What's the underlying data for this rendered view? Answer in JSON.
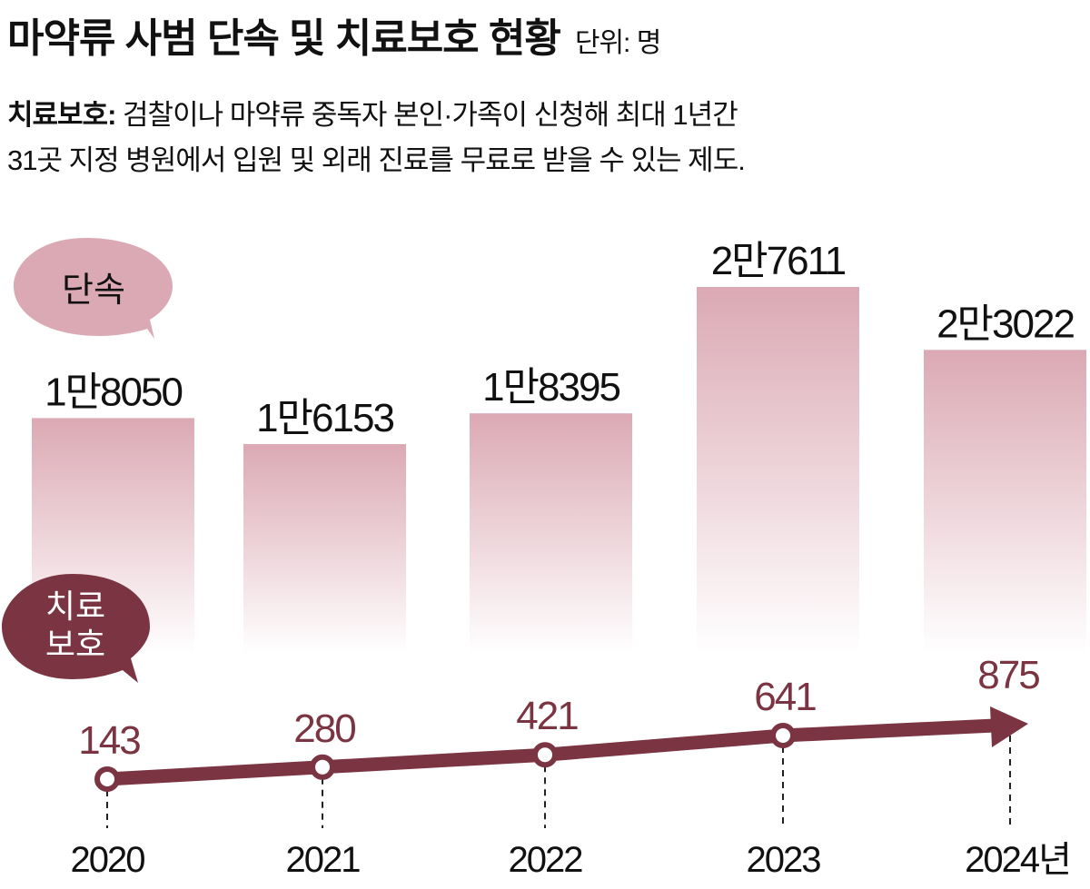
{
  "title": "마약류 사범 단속 및 치료보호 현황",
  "unit": "단위: 명",
  "note": {
    "label": "치료보호:",
    "line1": "검찰이나 마약류 중독자 본인·가족이 신청해 최대 1년간",
    "line2": "31곳 지정 병원에서 입원 및 외래 진료를 무료로 받을 수 있는 제도."
  },
  "chart_data": {
    "type": "bar+line",
    "categories": [
      "2020",
      "2021",
      "2022",
      "2023",
      "2024년"
    ],
    "series": [
      {
        "name": "단속",
        "type": "bar",
        "values": [
          18050,
          16153,
          18395,
          27611,
          23022
        ],
        "labels": [
          "1만8050",
          "1만6153",
          "1만8395",
          "2만7611",
          "2만3022"
        ],
        "color": "#dba9b4"
      },
      {
        "name": "치료보호",
        "type": "line",
        "values": [
          143,
          280,
          421,
          641,
          875
        ],
        "labels": [
          "143",
          "280",
          "421",
          "641",
          "875"
        ],
        "color": "#7b3442"
      }
    ],
    "legend": [
      "단속",
      "치료보호"
    ],
    "ylim": [
      0,
      28000
    ]
  }
}
